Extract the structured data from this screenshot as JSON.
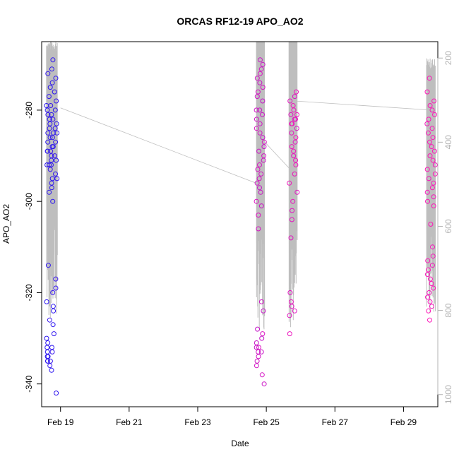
{
  "chart_data": {
    "type": "scatter",
    "title": "ORCAS RF12-19 APO_AO2",
    "xlabel": "Date",
    "ylabel": "APO_AO2",
    "x_unit": "days (0 = Feb 19)",
    "xlim": [
      -0.55,
      11.0
    ],
    "ylim": [
      -345,
      -265
    ],
    "x_ticks": [
      {
        "value": 0,
        "label": "Feb 19"
      },
      {
        "value": 2,
        "label": "Feb 21"
      },
      {
        "value": 4,
        "label": "Feb 23"
      },
      {
        "value": 6,
        "label": "Feb 25"
      },
      {
        "value": 8,
        "label": "Feb 27"
      },
      {
        "value": 10,
        "label": "Feb 29"
      }
    ],
    "y_ticks": [
      {
        "value": -280,
        "label": "-280"
      },
      {
        "value": -300,
        "label": "-300"
      },
      {
        "value": -320,
        "label": "-320"
      },
      {
        "value": -340,
        "label": "-340"
      }
    ],
    "secondary_axis": {
      "label": "",
      "range_top_to_bottom": [
        161,
        1029
      ],
      "ticks": [
        {
          "value": 200,
          "label": "200"
        },
        {
          "value": 400,
          "label": "400"
        },
        {
          "value": 600,
          "label": "600"
        },
        {
          "value": 800,
          "label": "800"
        },
        {
          "value": 1000,
          "label": "1000"
        }
      ]
    },
    "colors": {
      "start_point": "#2b15f0",
      "end_point": "#ff14b8",
      "pressure_trace": "#bebebe",
      "axis": "#000000",
      "secondary_axis": "#b3b3b3"
    },
    "flights": [
      {
        "center": -0.25,
        "spread": 0.16,
        "pressure_min": 185,
        "pressure_max": 830,
        "blend": 0.0,
        "y": [
          -272,
          -273,
          -274,
          -275,
          -276,
          -277,
          -278,
          -279,
          -280,
          -280,
          -281,
          -282,
          -282,
          -283,
          -283,
          -284,
          -284,
          -285,
          -285,
          -286,
          -286,
          -287,
          -287,
          -288,
          -288,
          -289,
          -289,
          -290,
          -290,
          -291,
          -291,
          -292,
          -292,
          -293,
          -294,
          -295,
          -296,
          -297,
          -298,
          -300,
          -269,
          -271,
          -279,
          -281,
          -285,
          -289,
          -292,
          -295,
          -314,
          -317,
          -319,
          -320,
          -322,
          -323,
          -324,
          -326,
          -327,
          -329,
          -330,
          -331,
          -332,
          -332,
          -333,
          -333,
          -334,
          -334,
          -335,
          -335,
          -336,
          -337,
          -342,
          -335
        ]
      },
      {
        "center": 5.83,
        "spread": 0.12,
        "pressure_min": 165,
        "pressure_max": 850,
        "blend": 0.78,
        "y": [
          -269,
          -270,
          -271,
          -272,
          -273,
          -274,
          -275,
          -276,
          -277,
          -278,
          -280,
          -280,
          -281,
          -282,
          -283,
          -284,
          -285,
          -286,
          -287,
          -288,
          -289,
          -290,
          -291,
          -292,
          -293,
          -294,
          -295,
          -296,
          -297,
          -298,
          -300,
          -301,
          -303,
          -306,
          -322,
          -324,
          -328,
          -329,
          -330,
          -331,
          -332,
          -332,
          -333,
          -333,
          -334,
          -335,
          -336,
          -338,
          -340
        ]
      },
      {
        "center": 6.78,
        "spread": 0.12,
        "pressure_min": 165,
        "pressure_max": 840,
        "blend": 0.9,
        "y": [
          -276,
          -277,
          -278,
          -279,
          -280,
          -281,
          -281,
          -282,
          -282,
          -283,
          -283,
          -284,
          -285,
          -286,
          -287,
          -288,
          -289,
          -290,
          -291,
          -292,
          -294,
          -296,
          -298,
          -300,
          -302,
          -304,
          -308,
          -320,
          -322,
          -323,
          -324,
          -325,
          -329
        ]
      },
      {
        "center": 10.8,
        "spread": 0.13,
        "pressure_min": 230,
        "pressure_max": 810,
        "blend": 1.0,
        "y": [
          -273,
          -276,
          -278,
          -279,
          -280,
          -281,
          -282,
          -283,
          -284,
          -285,
          -286,
          -287,
          -288,
          -289,
          -290,
          -291,
          -292,
          -293,
          -294,
          -295,
          -296,
          -297,
          -298,
          -299,
          -300,
          -301,
          -305,
          -310,
          -312,
          -313,
          -314,
          -315,
          -316,
          -317,
          -318,
          -319,
          -320,
          -321,
          -322,
          -323,
          -324,
          -326
        ]
      }
    ],
    "connector_line": [
      {
        "x": 0.0,
        "y": -279.5
      },
      {
        "x": 5.7,
        "y": -296.0
      },
      {
        "x": 5.83,
        "y": -286.0
      },
      {
        "x": 6.7,
        "y": -293.0
      },
      {
        "x": 6.83,
        "y": -278.0
      },
      {
        "x": 10.8,
        "y": -280.0
      }
    ],
    "grid": false,
    "legend": "none"
  }
}
